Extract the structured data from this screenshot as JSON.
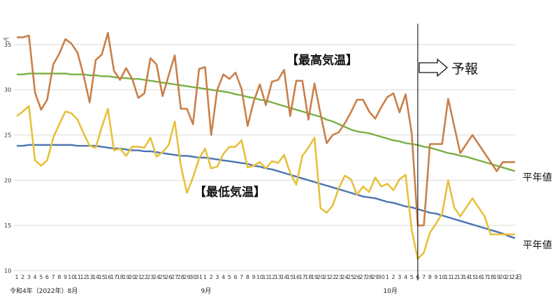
{
  "chart_data": {
    "type": "line",
    "unit": "℃",
    "day_unit": "日",
    "ylim": [
      10,
      37
    ],
    "yticks": [
      10,
      15,
      20,
      25,
      30,
      35
    ],
    "grid": "horizontal",
    "month_labels": [
      "令和4年（2022年）8月",
      "9月",
      "10月"
    ],
    "days": [
      1,
      2,
      3,
      4,
      5,
      6,
      7,
      8,
      9,
      10,
      11,
      12,
      13,
      14,
      15,
      16,
      17,
      18,
      19,
      20,
      21,
      22,
      23,
      24,
      25,
      26,
      27,
      28,
      29,
      30,
      31,
      1,
      2,
      3,
      4,
      5,
      6,
      7,
      8,
      9,
      10,
      11,
      12,
      13,
      14,
      15,
      16,
      17,
      18,
      19,
      20,
      21,
      22,
      23,
      24,
      25,
      26,
      27,
      28,
      29,
      30,
      1,
      2,
      3,
      4,
      5,
      6,
      7,
      8,
      9,
      10,
      11,
      12,
      13,
      14,
      15,
      16,
      17,
      18,
      19,
      20,
      21,
      22
    ],
    "series": [
      {
        "role": "max",
        "color": "#c8804a",
        "values": [
          35.8,
          35.8,
          36.0,
          29.7,
          27.8,
          28.9,
          32.8,
          34.0,
          35.6,
          35.1,
          34.1,
          31.6,
          28.6,
          33.3,
          33.9,
          36.3,
          32.1,
          31.1,
          32.4,
          31.2,
          29.1,
          29.6,
          33.5,
          32.8,
          29.3,
          31.6,
          33.8,
          27.9,
          27.9,
          26.2,
          32.3,
          32.5,
          25.0,
          30.0,
          31.7,
          31.2,
          31.9,
          30.1,
          26.0,
          28.7,
          30.6,
          28.3,
          30.9,
          31.1,
          32.2,
          27.1,
          31.0,
          31.0,
          26.7,
          30.7,
          27.3,
          24.1,
          25.0,
          25.3,
          26.3,
          27.5,
          28.9,
          28.9,
          27.6,
          26.8,
          28.1,
          29.2,
          29.6,
          27.5,
          29.5,
          25.2,
          15.0,
          15.0,
          24.0,
          24.0,
          24.0,
          29.0,
          26.0,
          23.0,
          24.0,
          25.0,
          24.0,
          23.0,
          22.0,
          21.0,
          22.0,
          22.0,
          22.0
        ]
      },
      {
        "role": "min",
        "color": "#e6c13c",
        "values": [
          27.1,
          27.6,
          28.2,
          22.2,
          21.6,
          22.2,
          24.7,
          26.2,
          27.6,
          27.4,
          26.7,
          25.2,
          23.8,
          23.6,
          25.9,
          27.9,
          23.3,
          23.5,
          22.7,
          23.7,
          23.7,
          23.6,
          24.7,
          22.6,
          23.1,
          23.9,
          26.5,
          21.6,
          18.6,
          20.3,
          22.4,
          23.5,
          21.3,
          21.5,
          22.9,
          23.7,
          23.7,
          24.4,
          21.4,
          21.6,
          22.0,
          21.3,
          22.1,
          21.9,
          22.8,
          20.8,
          19.5,
          22.7,
          23.6,
          24.7,
          16.9,
          16.4,
          17.2,
          19.1,
          20.5,
          20.1,
          18.4,
          19.3,
          18.7,
          20.3,
          19.3,
          19.6,
          18.9,
          20.1,
          20.6,
          14.5,
          11.3,
          12.0,
          14.2,
          15.2,
          16.3,
          20.0,
          17.0,
          16.0,
          17.0,
          18.0,
          17.0,
          16.0,
          14.0,
          14.0,
          14.0,
          14.0,
          14.0
        ]
      },
      {
        "role": "normal-max",
        "color": "#78b044",
        "values": [
          31.7,
          31.7,
          31.8,
          31.8,
          31.8,
          31.8,
          31.8,
          31.8,
          31.8,
          31.7,
          31.7,
          31.7,
          31.6,
          31.6,
          31.5,
          31.5,
          31.4,
          31.3,
          31.3,
          31.2,
          31.2,
          31.1,
          31.0,
          30.9,
          30.8,
          30.7,
          30.6,
          30.5,
          30.4,
          30.3,
          30.2,
          30.1,
          30.0,
          29.9,
          29.8,
          29.7,
          29.5,
          29.4,
          29.2,
          29.1,
          28.9,
          28.8,
          28.6,
          28.4,
          28.2,
          28.0,
          27.8,
          27.6,
          27.4,
          27.2,
          27.0,
          26.7,
          26.5,
          26.2,
          25.9,
          25.6,
          25.4,
          25.3,
          25.2,
          25.0,
          24.8,
          24.6,
          24.4,
          24.3,
          24.1,
          24.0,
          23.9,
          23.7,
          23.6,
          23.4,
          23.2,
          23.0,
          22.9,
          22.7,
          22.6,
          22.4,
          22.2,
          22.0,
          21.8,
          21.6,
          21.4,
          21.2,
          21.0
        ]
      },
      {
        "role": "normal-min",
        "color": "#4a73b0",
        "values": [
          23.8,
          23.8,
          23.9,
          23.9,
          23.9,
          23.9,
          23.9,
          23.9,
          23.9,
          23.9,
          23.8,
          23.8,
          23.8,
          23.8,
          23.7,
          23.6,
          23.5,
          23.5,
          23.4,
          23.3,
          23.3,
          23.2,
          23.2,
          23.1,
          23.0,
          22.9,
          22.8,
          22.7,
          22.7,
          22.6,
          22.5,
          22.5,
          22.4,
          22.3,
          22.2,
          22.1,
          22.0,
          21.9,
          21.8,
          21.6,
          21.5,
          21.3,
          21.2,
          21.0,
          20.8,
          20.6,
          20.4,
          20.2,
          20.0,
          19.8,
          19.6,
          19.4,
          19.2,
          19.0,
          18.8,
          18.6,
          18.4,
          18.2,
          18.1,
          18.0,
          17.8,
          17.6,
          17.5,
          17.3,
          17.1,
          17.0,
          16.8,
          16.6,
          16.4,
          16.3,
          16.1,
          15.9,
          15.7,
          15.5,
          15.3,
          15.1,
          14.9,
          14.7,
          14.5,
          14.3,
          14.1,
          13.8,
          13.6
        ]
      }
    ],
    "forecast_start_index": 66
  },
  "annotations": {
    "max_label": "【最高気温】",
    "min_label": "【最低気温】",
    "forecast_label": "予報",
    "normal_max_label": "平年値",
    "normal_min_label": "平年値"
  }
}
